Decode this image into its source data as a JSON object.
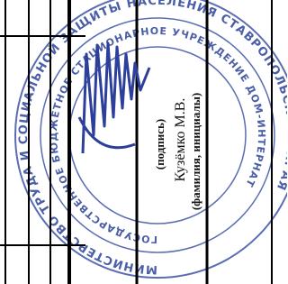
{
  "stamp": {
    "outer_text": "МИНИСТЕРСТВО ТРУДА И СОЦИАЛЬНОЙ ЗАЩИТЫ НАСЕЛЕНИЯ СТАВРОПОЛЬСКОГО КРАЯ",
    "inner_text": "ГОСУДАРСТВЕННОЕ БЮДЖЕТНОЕ СТАЦИОНАРНОЕ УЧРЕЖДЕНИЕ ДОМ-ИНТЕРНАТ"
  },
  "signature_block": {
    "signature_caption": "(подпись)",
    "name": "Кузёмко М.В.",
    "name_caption": "(фамилия, инициалы)"
  }
}
